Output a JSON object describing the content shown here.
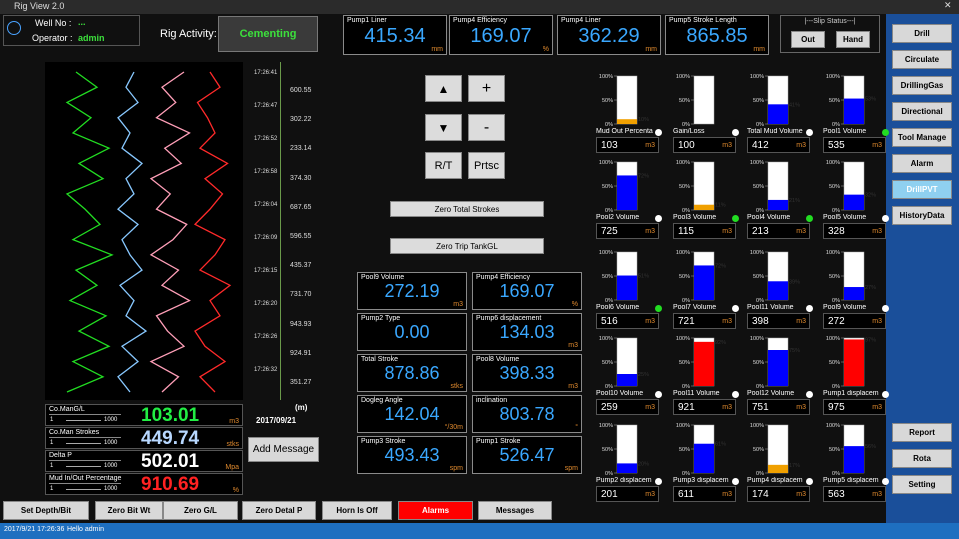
{
  "window": {
    "title": "Rig View 2.0",
    "close": "✕"
  },
  "header": {
    "well_label": "Well No :",
    "well_value": "...",
    "operator_label": "Operator :",
    "operator_value": "admin",
    "activity_label": "Rig Activity:",
    "activity_value": "Cementing"
  },
  "top_readouts": [
    {
      "label": "Pump1 Liner",
      "value": "415.34",
      "unit": "mm"
    },
    {
      "label": "Pump4 Efficiency",
      "value": "169.07",
      "unit": "%"
    },
    {
      "label": "Pump4 Liner",
      "value": "362.29",
      "unit": "mm"
    },
    {
      "label": "Pump5 Stroke Length",
      "value": "865.85",
      "unit": "mm"
    }
  ],
  "slip": {
    "title": "|---Slip Status---|",
    "buttons": [
      "Out",
      "Hand"
    ]
  },
  "menu": {
    "top": [
      "Drill",
      "Circulate",
      "DrillingGas",
      "Directional",
      "Tool Manage",
      "Alarm",
      "DrillPVT",
      "HistoryData"
    ],
    "active": "DrillPVT",
    "bottom": [
      "Report",
      "Rota",
      "Setting"
    ]
  },
  "trend": {
    "series": [
      {
        "color": "#22dd22",
        "values": [
          20,
          80,
          30,
          90,
          40,
          85,
          25,
          70,
          35,
          95,
          30,
          75,
          50,
          20,
          80,
          40,
          90,
          30,
          60,
          20,
          70,
          35
        ]
      },
      {
        "color": "#88c8ff",
        "values": [
          50,
          20,
          70,
          30,
          90,
          40,
          60,
          25,
          80,
          50,
          30,
          70,
          20,
          60,
          40,
          80,
          30,
          50,
          20,
          70,
          40,
          60
        ]
      },
      {
        "color": "#ff9fb8",
        "values": [
          40,
          70,
          20,
          80,
          50,
          30,
          90,
          40,
          70,
          20,
          60,
          85,
          30,
          55,
          20,
          75,
          45,
          90,
          30,
          65,
          40,
          80
        ]
      },
      {
        "color": "#ff2a2a",
        "values": [
          60,
          30,
          80,
          40,
          20,
          70,
          50,
          90,
          30,
          60,
          80,
          20,
          50,
          75,
          40,
          85,
          30,
          60,
          45,
          25,
          70,
          50
        ]
      }
    ],
    "time_labels": [
      "17:26:41",
      "17:26:47",
      "17:26:52",
      "17:26:58",
      "17:26:04",
      "17:26:09",
      "17:26:15",
      "17:26:20",
      "17:26:26",
      "17:26:32"
    ],
    "depth_values": [
      "600.55",
      "302.22",
      "233.14",
      "374.30",
      "687.65",
      "596.55",
      "435.37",
      "731.70",
      "943.93",
      "924.91",
      "351.27"
    ],
    "depth_unit": "(m)",
    "date": "2017/09/21"
  },
  "left_readouts": [
    {
      "label": "Co.ManG/L",
      "value": "103.01",
      "unit": "m3",
      "scale": [
        1,
        1000
      ],
      "color": "#22ee44"
    },
    {
      "label": "Co.Man Strokes",
      "value": "449.74",
      "unit": "stks",
      "scale": [
        1,
        1000
      ],
      "color": "#b8d8ff"
    },
    {
      "label": "Delta P",
      "value": "502.01",
      "unit": "Mpa",
      "scale": [
        1,
        1000
      ],
      "color": "#ffffff"
    },
    {
      "label": "Mud In/Out Percentage",
      "value": "910.69",
      "unit": "%",
      "scale": [
        1,
        1000
      ],
      "color": "#ff2222"
    }
  ],
  "add_message": "Add Message",
  "controls": {
    "up": "▲",
    "plus": "+",
    "down": "▼",
    "minus": "-",
    "rt": "R/T",
    "prtsc": "Prtsc",
    "zero_strokes": "Zero Total Strokes",
    "zero_trip": "Zero Trip TankGL"
  },
  "center_readouts": [
    {
      "label": "Pool9 Volume",
      "value": "272.19",
      "unit": "m3"
    },
    {
      "label": "Pump4 Efficiency",
      "value": "169.07",
      "unit": "%"
    },
    {
      "label": "Pump2 Type",
      "value": "0.00",
      "unit": ""
    },
    {
      "label": "Pump6 displacement",
      "value": "134.03",
      "unit": "m3"
    },
    {
      "label": "Total Stroke",
      "value": "878.86",
      "unit": "stks"
    },
    {
      "label": "Pool8 Volume",
      "value": "398.33",
      "unit": "m3"
    },
    {
      "label": "Dogleg Angle",
      "value": "142.04",
      "unit": "°/30m"
    },
    {
      "label": "inclination",
      "value": "803.78",
      "unit": "°"
    },
    {
      "label": "Pump3 Stroke",
      "value": "493.43",
      "unit": "spm"
    },
    {
      "label": "Pump1 Stroke",
      "value": "526.47",
      "unit": "spm"
    }
  ],
  "gauge_ticks": [
    {
      "value": 100,
      "label": "100%"
    },
    {
      "value": 50,
      "label": "50%"
    },
    {
      "value": 0,
      "label": "0%"
    }
  ],
  "gauges": [
    {
      "label": "Mud Out Percenta",
      "value": 103,
      "unit": "m3",
      "fill": 10,
      "fill_label": "10%",
      "color": "#f0a000",
      "indicator": "#ffffff"
    },
    {
      "label": "Gain/Loss",
      "value": 100,
      "unit": "m3",
      "fill": 0,
      "color": "#f0a000",
      "indicator": "#ffffff"
    },
    {
      "label": "Total Mud Volume",
      "value": 412,
      "unit": "m3",
      "fill": 41,
      "fill_label": "41%",
      "color": "#0000ff",
      "indicator": "#ffffff"
    },
    {
      "label": "Pool1 Volume",
      "value": 535,
      "unit": "m3",
      "fill": 53,
      "fill_label": "53%",
      "color": "#0000ff",
      "indicator": "#22dd22"
    },
    {
      "label": "Pool2 Volume",
      "value": 725,
      "unit": "m3",
      "fill": 72,
      "fill_label": "72%",
      "color": "#0000ff",
      "indicator": "#ffffff"
    },
    {
      "label": "Pool3 Volume",
      "value": 115,
      "unit": "m3",
      "fill": 11,
      "fill_label": "11%",
      "color": "#f0a000",
      "indicator": "#22dd22"
    },
    {
      "label": "Pool4 Volume",
      "value": 213,
      "unit": "m3",
      "fill": 21,
      "fill_label": "21%",
      "color": "#0000ff",
      "indicator": "#22dd22"
    },
    {
      "label": "Pool5 Volume",
      "value": 328,
      "unit": "m3",
      "fill": 32,
      "fill_label": "32%",
      "color": "#0000ff",
      "indicator": "#ffffff"
    },
    {
      "label": "Pool6 Volume",
      "value": 516,
      "unit": "m3",
      "fill": 51,
      "fill_label": "51%",
      "color": "#0000ff",
      "indicator": "#22dd22"
    },
    {
      "label": "Pool7 Volume",
      "value": 721,
      "unit": "m3",
      "fill": 72,
      "fill_label": "72%",
      "color": "#0000ff",
      "indicator": "#ffffff"
    },
    {
      "label": "Pool11 Volume",
      "value": 398,
      "unit": "m3",
      "fill": 39,
      "fill_label": "39%",
      "color": "#0000ff",
      "indicator": "#ffffff"
    },
    {
      "label": "Pool9 Volume",
      "value": 272,
      "unit": "m3",
      "fill": 27,
      "fill_label": "27%",
      "color": "#0000ff",
      "indicator": "#ffffff"
    },
    {
      "label": "Pool10 Volume",
      "value": 259,
      "unit": "m3",
      "fill": 25,
      "fill_label": "25%",
      "color": "#0000ff",
      "indicator": "#ffffff"
    },
    {
      "label": "Pool11 Volume",
      "value": 921,
      "unit": "m3",
      "fill": 92,
      "fill_label": "92%",
      "color": "#ff0000",
      "indicator": "#ffffff"
    },
    {
      "label": "Pool12 Volume",
      "value": 751,
      "unit": "m3",
      "fill": 75,
      "fill_label": "75%",
      "color": "#0000ff",
      "indicator": "#ffffff"
    },
    {
      "label": "Pump1 displacem",
      "value": 975,
      "unit": "m3",
      "fill": 97,
      "fill_label": "97%",
      "color": "#ff0000",
      "indicator": "#ffffff"
    },
    {
      "label": "Pump2 displacem",
      "value": 201,
      "unit": "m3",
      "fill": 20,
      "fill_label": "20%",
      "color": "#0000ff",
      "indicator": "#ffffff"
    },
    {
      "label": "Pump3 displacem",
      "value": 611,
      "unit": "m3",
      "fill": 61,
      "fill_label": "61%",
      "color": "#0000ff",
      "indicator": "#ffffff"
    },
    {
      "label": "Pump4 displacem",
      "value": 174,
      "unit": "m3",
      "fill": 17,
      "fill_label": "17%",
      "color": "#f0a000",
      "indicator": "#ffffff"
    },
    {
      "label": "Pump5 displacem",
      "value": 563,
      "unit": "m3",
      "fill": 56,
      "fill_label": "56%",
      "color": "#0000ff",
      "indicator": "#ffffff"
    }
  ],
  "bottom_buttons": [
    "Set Depth/Bit",
    "Zero Bit Wt",
    "Zero G/L",
    "Zero Detal P",
    "Horn Is Off",
    "Alarms",
    "Messages"
  ],
  "alarm_button": "Alarms",
  "status": {
    "time": "2017/9/21 17:26:36",
    "message": "Hello admin"
  }
}
